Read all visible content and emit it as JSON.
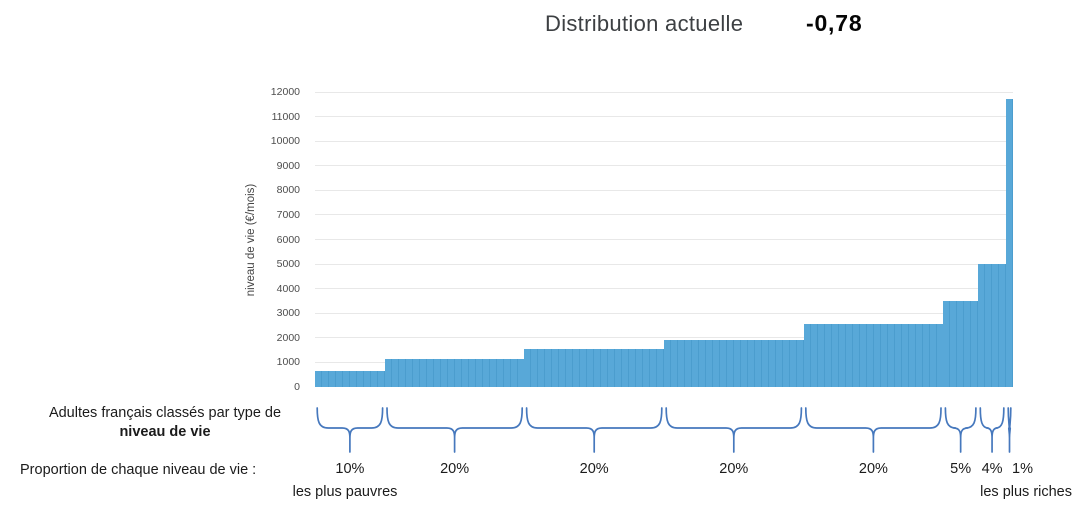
{
  "header": {
    "title": "Distribution actuelle",
    "value": "-0,78"
  },
  "chart_data": {
    "type": "bar",
    "title": "Distribution actuelle",
    "xlabel": "",
    "ylabel": "niveau de vie (€/mois)",
    "ylim": [
      0,
      12000
    ],
    "ytick_step": 1000,
    "grid": true,
    "legend": null,
    "bar_color": "#58a8d8",
    "brace_color": "#4678bd",
    "categories": [
      "10%",
      "20%",
      "20%",
      "20%",
      "20%",
      "5%",
      "4%",
      "1%"
    ],
    "values": [
      650,
      1150,
      1550,
      1930,
      2550,
      3500,
      5000,
      11700
    ],
    "groups": [
      {
        "share": 10,
        "value": 650,
        "label": "10%",
        "label_dx": 0
      },
      {
        "share": 20,
        "value": 1150,
        "label": "20%",
        "label_dx": 0
      },
      {
        "share": 20,
        "value": 1550,
        "label": "20%",
        "label_dx": 0
      },
      {
        "share": 20,
        "value": 1930,
        "label": "20%",
        "label_dx": 0
      },
      {
        "share": 20,
        "value": 2550,
        "label": "20%",
        "label_dx": 0
      },
      {
        "share": 5,
        "value": 3500,
        "label": "5%",
        "label_dx": 0
      },
      {
        "share": 4,
        "value": 5000,
        "label": "4%",
        "label_dx": 0
      },
      {
        "share": 1,
        "value": 11700,
        "label": "1%",
        "label_dx": 13
      }
    ]
  },
  "annotations": {
    "classification_line1": "Adultes français classés par type de",
    "classification_line2": "niveau de vie",
    "proportion_label": "Proportion de chaque niveau de vie :",
    "poorest_label": "les plus pauvres",
    "richest_label": "les plus riches"
  }
}
